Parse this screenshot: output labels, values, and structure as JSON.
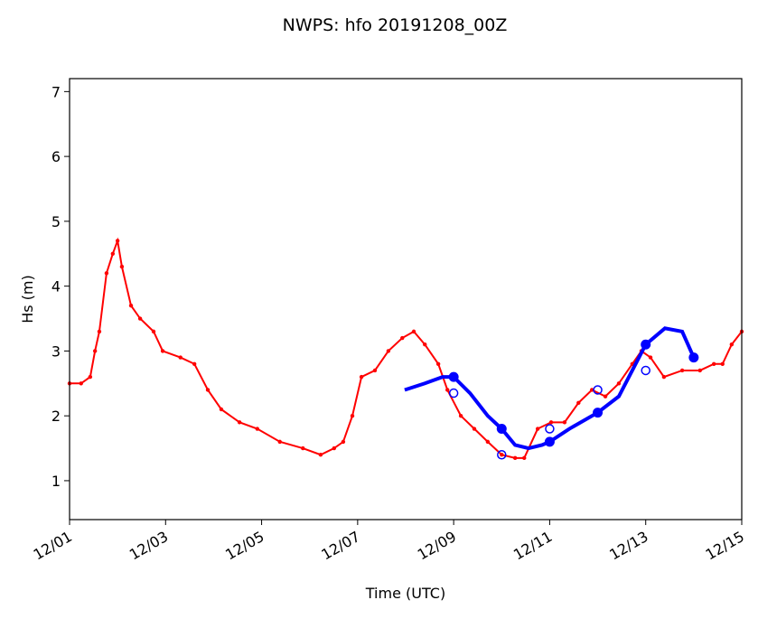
{
  "chart_data": {
    "type": "line",
    "title": "NWPS: hfo 20191208_00Z",
    "x_label": "Time (UTC)",
    "y_label": "Hs (m)",
    "xlim": [
      0,
      14
    ],
    "xticks": [
      {
        "value": 0,
        "label": "12/01"
      },
      {
        "value": 2,
        "label": "12/03"
      },
      {
        "value": 4,
        "label": "12/05"
      },
      {
        "value": 6,
        "label": "12/07"
      },
      {
        "value": 8,
        "label": "12/09"
      },
      {
        "value": 10,
        "label": "12/11"
      },
      {
        "value": 12,
        "label": "12/13"
      },
      {
        "value": 14,
        "label": "12/15"
      }
    ],
    "ylim": [
      0.4,
      7.2
    ],
    "yticks": [
      1,
      2,
      3,
      4,
      5,
      6,
      7
    ],
    "series": [
      {
        "color": "#ff0000",
        "style": "line-dots",
        "x": [
          0,
          0.24,
          0.43,
          0.53,
          0.62,
          0.77,
          0.9,
          1.0,
          1.09,
          1.28,
          1.47,
          1.75,
          1.94,
          2.31,
          2.6,
          2.88,
          3.16,
          3.54,
          3.91,
          4.38,
          4.86,
          5.23,
          5.51,
          5.7,
          5.89,
          6.08,
          6.36,
          6.64,
          6.93,
          7.17,
          7.4,
          7.68,
          7.87,
          8.15,
          8.43,
          8.71,
          9.0,
          9.28,
          9.47,
          9.75,
          10.03,
          10.31,
          10.6,
          10.88,
          11.16,
          11.44,
          11.72,
          11.91,
          12.1,
          12.38,
          12.76,
          13.13,
          13.42,
          13.6,
          13.79,
          14.0
        ],
        "values": [
          2.5,
          2.5,
          2.6,
          3.0,
          3.3,
          4.2,
          4.5,
          4.7,
          4.3,
          3.7,
          3.5,
          3.3,
          3.0,
          2.9,
          2.8,
          2.4,
          2.1,
          1.9,
          1.8,
          1.6,
          1.5,
          1.4,
          1.5,
          1.6,
          2.0,
          2.6,
          2.7,
          3.0,
          3.2,
          3.3,
          3.1,
          2.8,
          2.4,
          2.0,
          1.8,
          1.6,
          1.4,
          1.35,
          1.35,
          1.8,
          1.9,
          1.9,
          2.2,
          2.4,
          2.3,
          2.5,
          2.8,
          3.0,
          2.9,
          2.6,
          2.7,
          2.7,
          2.8,
          2.8,
          3.1,
          3.3
        ]
      },
      {
        "color": "#0000ff",
        "style": "thick-line",
        "x": [
          6.98,
          7.4,
          7.77,
          8.0,
          8.34,
          8.71,
          9.0,
          9.28,
          9.56,
          9.84,
          10.0,
          10.41,
          11.0,
          11.44,
          11.72,
          12.0,
          12.4,
          12.76,
          13.0
        ],
        "values": [
          2.4,
          2.5,
          2.6,
          2.6,
          2.35,
          2.0,
          1.8,
          1.55,
          1.5,
          1.55,
          1.6,
          1.8,
          2.05,
          2.3,
          2.7,
          3.1,
          3.35,
          3.3,
          2.9
        ]
      },
      {
        "color": "#0000ff",
        "style": "open-markers",
        "x": [
          8,
          9,
          10,
          11,
          12,
          13
        ],
        "values": [
          2.35,
          1.4,
          1.8,
          2.4,
          2.7,
          2.9
        ]
      }
    ]
  }
}
